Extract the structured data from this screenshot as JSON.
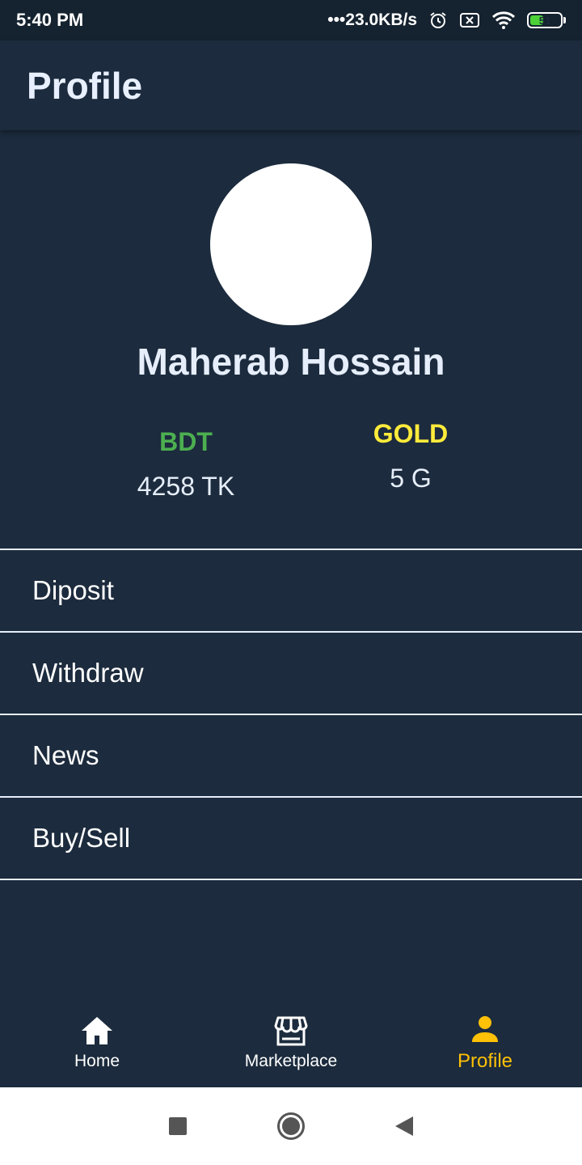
{
  "status_bar": {
    "time": "5:40 PM",
    "network_speed": "•••23.0KB/s",
    "battery_level": "51",
    "battery_percent": 51,
    "icons": [
      "alarm-icon",
      "sim-disabled-icon",
      "wifi-icon",
      "battery-icon"
    ]
  },
  "app_bar": {
    "title": "Profile"
  },
  "profile": {
    "name": "Maherab Hossain",
    "balances": {
      "bdt": {
        "label": "BDT",
        "value": "4258 TK",
        "color": "#4caf50"
      },
      "gold": {
        "label": "GOLD",
        "value": "5 G",
        "color": "#ffeb3b"
      }
    }
  },
  "menu": {
    "items": [
      {
        "label": "Diposit"
      },
      {
        "label": "Withdraw"
      },
      {
        "label": "News"
      },
      {
        "label": "Buy/Sell"
      }
    ]
  },
  "bottom_nav": {
    "items": [
      {
        "label": "Home",
        "icon": "home-icon"
      },
      {
        "label": "Marketplace",
        "icon": "store-icon"
      },
      {
        "label": "Profile",
        "icon": "person-icon",
        "active": true
      }
    ],
    "active_color": "#ffc107"
  },
  "system_nav": {
    "icons": [
      "recents-icon",
      "home-circle-icon",
      "back-icon"
    ]
  }
}
